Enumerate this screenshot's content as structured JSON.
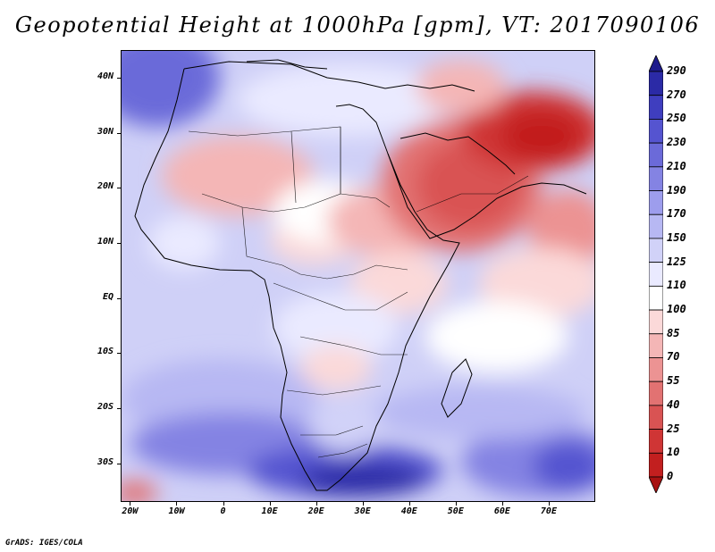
{
  "title": "Geopotential Height at 1000hPa [gpm], VT: 2017090106",
  "map": {
    "region": "Africa, Middle East and western Indian Ocean",
    "lon_range": [
      -22,
      80
    ],
    "lat_range": [
      -37,
      45
    ],
    "y_axis_labels": [
      {
        "lat": 40,
        "text": "40N"
      },
      {
        "lat": 30,
        "text": "30N"
      },
      {
        "lat": 20,
        "text": "20N"
      },
      {
        "lat": 10,
        "text": "10N"
      },
      {
        "lat": 0,
        "text": "EQ"
      },
      {
        "lat": -10,
        "text": "10S"
      },
      {
        "lat": -20,
        "text": "20S"
      },
      {
        "lat": -30,
        "text": "30S"
      }
    ],
    "x_axis_labels": [
      {
        "lon": -20,
        "text": "20W"
      },
      {
        "lon": -10,
        "text": "10W"
      },
      {
        "lon": 0,
        "text": "0"
      },
      {
        "lon": 10,
        "text": "10E"
      },
      {
        "lon": 20,
        "text": "20E"
      },
      {
        "lon": 30,
        "text": "30E"
      },
      {
        "lon": 40,
        "text": "40E"
      },
      {
        "lon": 50,
        "text": "50E"
      },
      {
        "lon": 60,
        "text": "60E"
      },
      {
        "lon": 70,
        "text": "70E"
      }
    ]
  },
  "colorbar": {
    "labels": [
      "290",
      "270",
      "250",
      "230",
      "210",
      "190",
      "170",
      "150",
      "125",
      "110",
      "100",
      "85",
      "70",
      "55",
      "40",
      "25",
      "10",
      "0"
    ],
    "colors": [
      "#1e1b8c",
      "#2b2aa6",
      "#3f3ebf",
      "#5554d0",
      "#6b6ad9",
      "#8483e3",
      "#9d9ded",
      "#b7b8f3",
      "#d1d2f8",
      "#eaeaff",
      "#ffffff",
      "#fbd9d9",
      "#f4b6b6",
      "#ec9393",
      "#e27272",
      "#d95353",
      "#cf3535",
      "#c21f1f",
      "#a81212"
    ]
  },
  "credit": "GrADS: IGES/COLA"
}
